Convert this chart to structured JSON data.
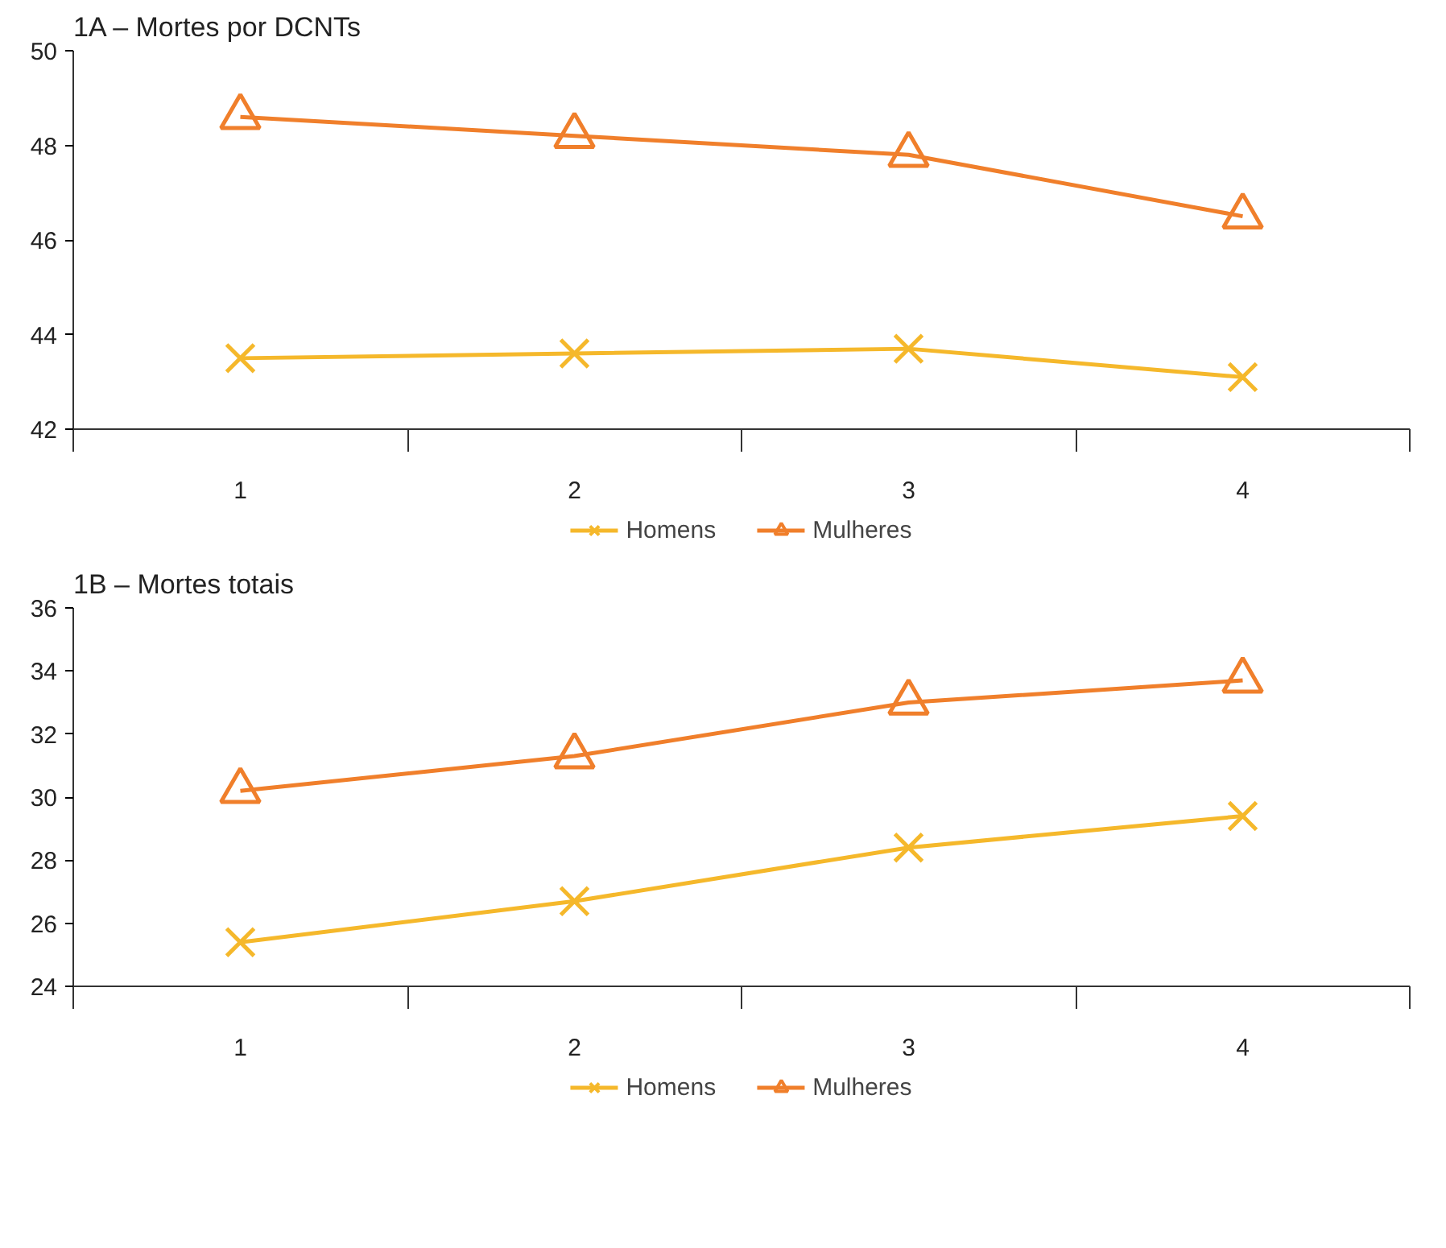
{
  "chart_data": [
    {
      "type": "line",
      "title": "1A – Mortes por DCNTs",
      "categories": [
        "1",
        "2",
        "3",
        "4"
      ],
      "ylim": [
        42,
        50
      ],
      "yticks": [
        42,
        44,
        46,
        48,
        50
      ],
      "grid": false,
      "legend": "bottom",
      "series": [
        {
          "name": "Homens",
          "color": "#f5b82b",
          "marker": "cross",
          "values": [
            43.5,
            43.6,
            43.7,
            43.1
          ]
        },
        {
          "name": "Mulheres",
          "color": "#f07f2b",
          "marker": "triangle",
          "values": [
            48.6,
            48.2,
            47.8,
            46.5
          ]
        }
      ]
    },
    {
      "type": "line",
      "title": "1B – Mortes totais",
      "categories": [
        "1",
        "2",
        "3",
        "4"
      ],
      "ylim": [
        24,
        36
      ],
      "yticks": [
        24,
        26,
        28,
        30,
        32,
        34,
        36
      ],
      "grid": false,
      "legend": "bottom",
      "series": [
        {
          "name": "Homens",
          "color": "#f5b82b",
          "marker": "cross",
          "values": [
            25.4,
            26.7,
            28.4,
            29.4
          ]
        },
        {
          "name": "Mulheres",
          "color": "#f07f2b",
          "marker": "triangle",
          "values": [
            30.2,
            31.3,
            33.0,
            33.7
          ]
        }
      ]
    }
  ]
}
